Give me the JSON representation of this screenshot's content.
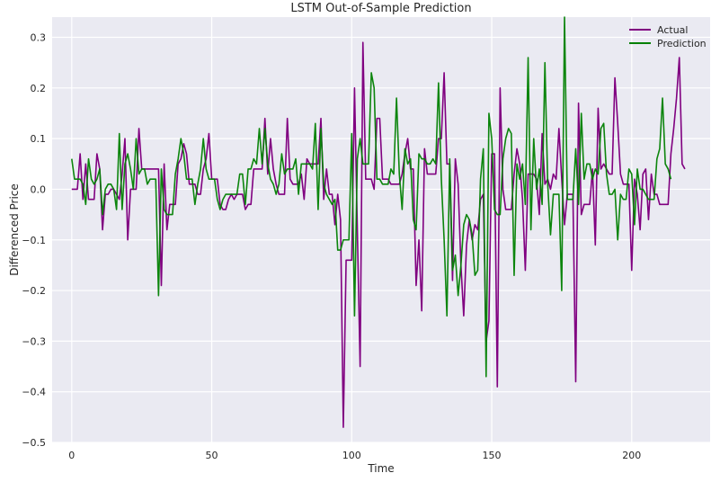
{
  "chart_data": {
    "type": "line",
    "title": "LSTM Out-of-Sample Prediction",
    "xlabel": "Time",
    "ylabel": "Differenced Price",
    "xlim": [
      -7,
      228
    ],
    "ylim": [
      -0.5,
      0.34
    ],
    "xticks": [
      0,
      50,
      100,
      150,
      200
    ],
    "yticks": [
      -0.5,
      -0.4,
      -0.3,
      -0.2,
      -0.1,
      0.0,
      0.1,
      0.2,
      0.3
    ],
    "ytick_labels": [
      "−0.5",
      "−0.4",
      "−0.3",
      "−0.2",
      "−0.1",
      "0.0",
      "0.1",
      "0.2",
      "0.3"
    ],
    "grid": true,
    "legend": "top-right",
    "background": "#eaeaf2",
    "series": [
      {
        "name": "Actual",
        "color": "#800080",
        "values": [
          0,
          0,
          0,
          0.07,
          -0.02,
          0.05,
          -0.02,
          -0.02,
          -0.02,
          0.07,
          0.04,
          -0.08,
          -0.01,
          -0.01,
          0,
          0,
          -0.01,
          -0.02,
          0.03,
          0.1,
          -0.1,
          0,
          0,
          0,
          0.12,
          0.04,
          0.04,
          0.04,
          0.04,
          0.04,
          0.04,
          0.04,
          -0.19,
          0.05,
          -0.08,
          -0.03,
          -0.03,
          -0.03,
          0.05,
          0.06,
          0.09,
          0.07,
          0.01,
          0.01,
          0.01,
          -0.01,
          -0.01,
          0.04,
          0.06,
          0.11,
          0.02,
          0.02,
          0.02,
          -0.03,
          -0.04,
          -0.04,
          -0.02,
          -0.01,
          -0.02,
          -0.01,
          -0.01,
          -0.01,
          -0.04,
          -0.03,
          -0.03,
          0.04,
          0.04,
          0.04,
          0.04,
          0.14,
          0.03,
          0.1,
          0.04,
          0.01,
          -0.01,
          -0.01,
          -0.01,
          0.14,
          0.02,
          0.01,
          0.01,
          0.01,
          0.03,
          -0.02,
          0.06,
          0.05,
          0.05,
          0.05,
          0.05,
          0.14,
          -0.02,
          0.04,
          -0.01,
          -0.01,
          -0.07,
          -0.01,
          -0.06,
          -0.47,
          -0.14,
          -0.14,
          -0.14,
          0.2,
          -0.08,
          -0.35,
          0.29,
          0.02,
          0.02,
          0.02,
          0,
          0.14,
          0.14,
          0.02,
          0.02,
          0.02,
          0.01,
          0.01,
          0.01,
          0.01,
          0.03,
          0.07,
          0.1,
          0.04,
          0.04,
          -0.19,
          -0.1,
          -0.24,
          0.08,
          0.03,
          0.03,
          0.03,
          0.03,
          0.1,
          0.1,
          0.23,
          0.05,
          0.05,
          -0.18,
          0.06,
          0.01,
          -0.15,
          -0.25,
          -0.11,
          -0.06,
          -0.1,
          -0.07,
          -0.08,
          -0.02,
          -0.01,
          -0.3,
          -0.26,
          0.07,
          0.07,
          -0.39,
          0.2,
          0,
          -0.04,
          -0.04,
          -0.04,
          0.03,
          0.08,
          0.05,
          -0.02,
          -0.16,
          0.03,
          0.03,
          0.03,
          0.02,
          -0.05,
          0.11,
          0.01,
          0.02,
          0,
          0.03,
          0.02,
          0.12,
          0.02,
          -0.07,
          -0.01,
          -0.01,
          -0.01,
          -0.38,
          0.17,
          -0.05,
          -0.03,
          -0.03,
          -0.03,
          0.04,
          -0.11,
          0.16,
          0.04,
          0.05,
          0.04,
          0.03,
          0.03,
          0.22,
          0.13,
          0.03,
          0.01,
          0.01,
          0.01,
          -0.16,
          0.02,
          -0.01,
          -0.08,
          0.03,
          0.04,
          -0.06,
          0.03,
          -0.01,
          -0.01,
          -0.03,
          -0.03,
          -0.03,
          -0.03,
          0.07,
          0.12,
          0.18,
          0.26,
          0.05,
          0.04
        ]
      },
      {
        "name": "Prediction",
        "color": "#008000",
        "values": [
          0.06,
          0.02,
          0.02,
          0.02,
          0.01,
          -0.03,
          0.06,
          0.02,
          0.01,
          0.02,
          0.04,
          -0.05,
          0,
          0.01,
          0.01,
          0,
          -0.04,
          0.11,
          -0.04,
          0.05,
          0.07,
          0.04,
          0,
          0.1,
          0.03,
          0.04,
          0.04,
          0.01,
          0.02,
          0.02,
          0.02,
          -0.21,
          0.04,
          -0.04,
          -0.05,
          -0.05,
          -0.05,
          0.03,
          0.06,
          0.1,
          0.07,
          0.02,
          0.02,
          0.02,
          -0.03,
          0.01,
          0.04,
          0.1,
          0.04,
          0.02,
          0.02,
          0.02,
          -0.02,
          -0.04,
          -0.02,
          -0.01,
          -0.01,
          -0.01,
          -0.01,
          -0.01,
          0.03,
          0.03,
          -0.03,
          0.04,
          0.04,
          0.06,
          0.05,
          0.12,
          0.05,
          0.12,
          0.05,
          0.02,
          0.01,
          -0.01,
          0.01,
          0.07,
          0.03,
          0.04,
          0.04,
          0.04,
          0.06,
          -0.01,
          0.05,
          0.05,
          0.05,
          0.05,
          0.04,
          0.13,
          -0.04,
          0.12,
          0.01,
          -0.01,
          -0.02,
          -0.03,
          -0.02,
          -0.12,
          -0.12,
          -0.1,
          -0.1,
          -0.1,
          0.11,
          -0.25,
          0.06,
          0.1,
          0.05,
          0.05,
          0.05,
          0.23,
          0.2,
          0.02,
          0.02,
          0.01,
          0.01,
          0.01,
          0.04,
          0.03,
          0.18,
          0.03,
          -0.04,
          0.08,
          0.05,
          0.06,
          -0.06,
          -0.08,
          0.07,
          0.06,
          0.06,
          0.05,
          0.05,
          0.06,
          0.05,
          0.21,
          0.02,
          -0.1,
          -0.25,
          0.06,
          -0.16,
          -0.13,
          -0.21,
          -0.15,
          -0.07,
          -0.05,
          -0.06,
          -0.09,
          -0.17,
          -0.16,
          0.02,
          0.08,
          -0.37,
          0.15,
          0.1,
          -0.04,
          -0.05,
          -0.05,
          0.06,
          0.1,
          0.12,
          0.11,
          -0.17,
          0.05,
          0.02,
          0.05,
          -0.03,
          0.26,
          -0.08,
          0.1,
          0,
          0.04,
          -0.03,
          0.25,
          0.01,
          -0.09,
          -0.01,
          -0.01,
          -0.01,
          -0.2,
          0.34,
          -0.02,
          -0.02,
          -0.02,
          0.08,
          -0.03,
          0.15,
          0.02,
          0.05,
          0.05,
          0.02,
          0.04,
          0.03,
          0.12,
          0.13,
          0.03,
          -0.01,
          -0.01,
          0,
          -0.1,
          -0.01,
          -0.02,
          -0.02,
          0.04,
          0.03,
          -0.07,
          0.04,
          0,
          0,
          -0.01,
          -0.02,
          -0.02,
          -0.02,
          0.06,
          0.08,
          0.18,
          0.05,
          0.04,
          0.02
        ]
      }
    ]
  }
}
